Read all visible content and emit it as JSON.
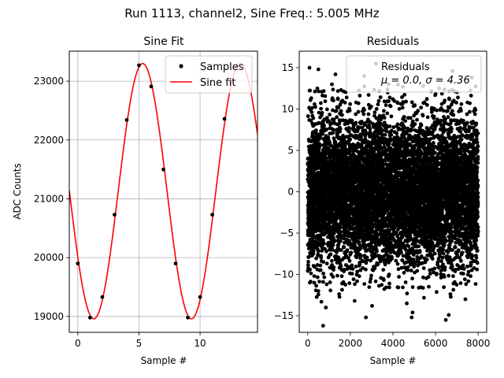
{
  "figure": {
    "suptitle": "Run 1113, channel2, Sine Freq.: 5.005 MHz"
  },
  "chart_data": [
    {
      "type": "line",
      "title": "Sine Fit",
      "xlabel": "Sample #",
      "ylabel": "ADC Counts",
      "xlim": [
        -0.7,
        14.7
      ],
      "ylim": [
        18730,
        23510
      ],
      "xticks": [
        0,
        5,
        10
      ],
      "yticks": [
        19000,
        20000,
        21000,
        22000,
        23000
      ],
      "grid": true,
      "legend_position": "upper right",
      "fit_params": {
        "amplitude": 2170,
        "offset": 21130,
        "period_samples": 7.99,
        "phase_peak_sample": 5.3
      },
      "series": [
        {
          "name": "Samples",
          "style": "scatter",
          "color": "#000000",
          "x": [
            0,
            1,
            2,
            3,
            4,
            5,
            6,
            7,
            8,
            9,
            10,
            11,
            12
          ],
          "y": [
            19900,
            18980,
            19330,
            20730,
            22340,
            23270,
            22910,
            21500,
            19900,
            18980,
            19330,
            20730,
            22360
          ]
        },
        {
          "name": "Sine fit",
          "style": "line",
          "color": "#ff0000"
        }
      ]
    },
    {
      "type": "scatter",
      "title": "Residuals",
      "xlabel": "Sample #",
      "ylabel": "",
      "xlim": [
        -400,
        8400
      ],
      "ylim": [
        -17,
        17
      ],
      "xticks": [
        0,
        2000,
        4000,
        6000,
        8000
      ],
      "yticks": [
        -15,
        -10,
        -5,
        0,
        5,
        10,
        15
      ],
      "grid": false,
      "legend_position": "upper right",
      "n_points": 8000,
      "mu": 0.0,
      "sigma": 4.36,
      "legend_label_line1": "Residuals",
      "legend_label_line2": "μ = 0.0, σ = 4.36",
      "outliers": [
        {
          "x": 80,
          "y": 15.0
        },
        {
          "x": 500,
          "y": 14.8
        },
        {
          "x": 450,
          "y": 12.5
        },
        {
          "x": 1300,
          "y": 14.2
        },
        {
          "x": 2650,
          "y": 14.0
        },
        {
          "x": 3200,
          "y": 15.5
        },
        {
          "x": 3800,
          "y": 13.0
        },
        {
          "x": 6800,
          "y": 14.6
        },
        {
          "x": 7700,
          "y": 13.8
        },
        {
          "x": 720,
          "y": -16.2
        },
        {
          "x": 640,
          "y": -13.3
        },
        {
          "x": 850,
          "y": -14.0
        },
        {
          "x": 2200,
          "y": -13.2
        },
        {
          "x": 2730,
          "y": -15.2
        },
        {
          "x": 3020,
          "y": -13.8
        },
        {
          "x": 4650,
          "y": -13.5
        },
        {
          "x": 4880,
          "y": -15.2
        },
        {
          "x": 4920,
          "y": -14.6
        },
        {
          "x": 6480,
          "y": -15.5
        },
        {
          "x": 6620,
          "y": -14.9
        },
        {
          "x": 7400,
          "y": -13.0
        }
      ]
    }
  ]
}
